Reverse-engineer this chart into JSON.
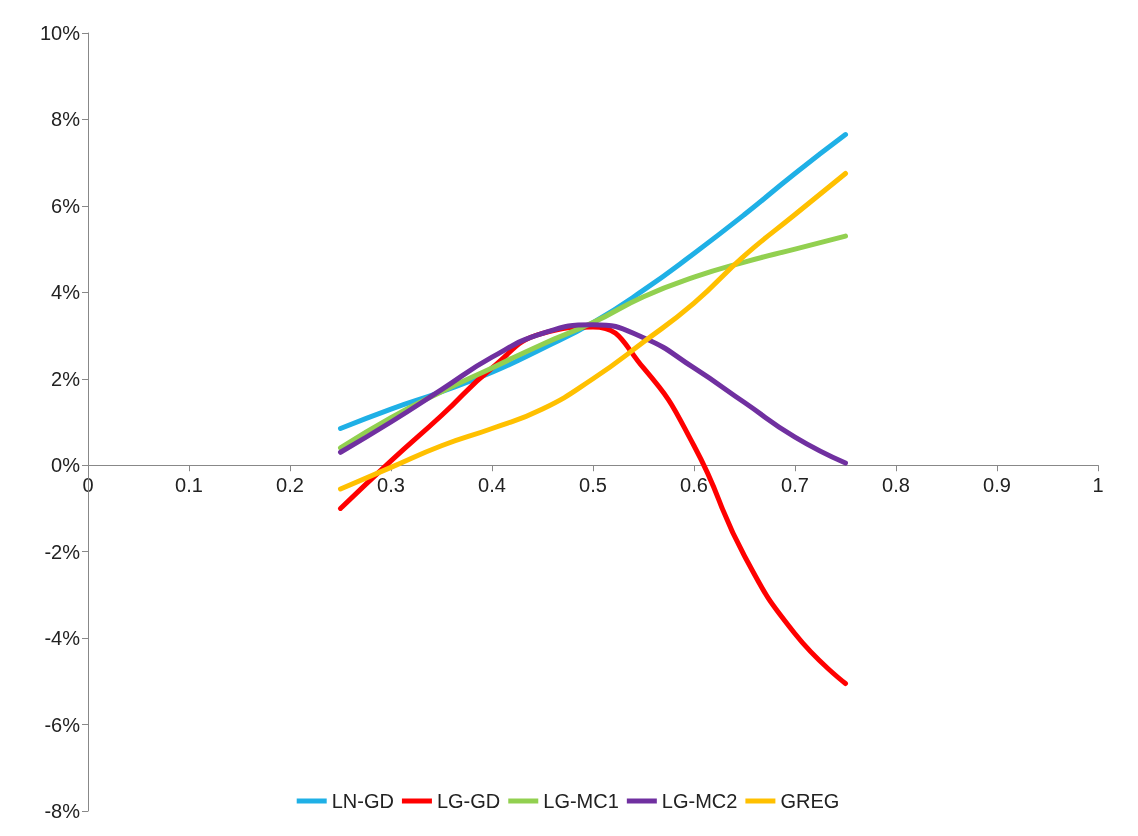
{
  "chart_data": {
    "type": "line",
    "x": [
      0.25,
      0.3,
      0.35,
      0.4,
      0.45,
      0.5,
      0.55,
      0.6,
      0.65,
      0.7,
      0.75
    ],
    "series": [
      {
        "name": "LN-GD",
        "color": "#1fb0e6",
        "values": [
          0.85,
          1.3,
          1.7,
          2.15,
          2.7,
          3.3,
          4.05,
          4.9,
          5.8,
          6.75,
          7.65
        ]
      },
      {
        "name": "LG-GD",
        "color": "#ff0000",
        "values": [
          -1.0,
          0.1,
          1.15,
          2.25,
          3.05,
          3.2,
          2.25,
          0.45,
          -2.1,
          -3.9,
          -5.05
        ]
      },
      {
        "name": "LG-MC1",
        "color": "#92d050",
        "values": [
          0.4,
          1.1,
          1.7,
          2.25,
          2.8,
          3.3,
          3.9,
          4.35,
          4.7,
          5.0,
          5.3
        ]
      },
      {
        "name": "LG-MC2",
        "color": "#7030a0",
        "values": [
          0.3,
          1.0,
          1.75,
          2.5,
          3.05,
          3.25,
          2.95,
          2.25,
          1.45,
          0.65,
          0.05
        ]
      },
      {
        "name": "GREG",
        "color": "#ffc000",
        "values": [
          -0.55,
          -0.05,
          0.45,
          0.85,
          1.3,
          2.0,
          2.85,
          3.75,
          4.85,
          5.8,
          6.75
        ]
      }
    ],
    "xlim": [
      0,
      1
    ],
    "xticks": [
      0,
      0.1,
      0.2,
      0.3,
      0.4,
      0.5,
      0.6,
      0.7,
      0.8,
      0.9,
      1
    ],
    "ylim": [
      -8,
      10
    ],
    "yticks": [
      {
        "value": -8,
        "label": "-8%"
      },
      {
        "value": -6,
        "label": "-6%"
      },
      {
        "value": -4,
        "label": "-4%"
      },
      {
        "value": -2,
        "label": "-2%"
      },
      {
        "value": 0,
        "label": "0%"
      },
      {
        "value": 2,
        "label": "2%"
      },
      {
        "value": 4,
        "label": "4%"
      },
      {
        "value": 6,
        "label": "6%"
      },
      {
        "value": 8,
        "label": "8%"
      },
      {
        "value": 10,
        "label": "10%"
      }
    ],
    "grid": false,
    "legend": "bottom",
    "marker": "none",
    "line_style": "solid"
  }
}
